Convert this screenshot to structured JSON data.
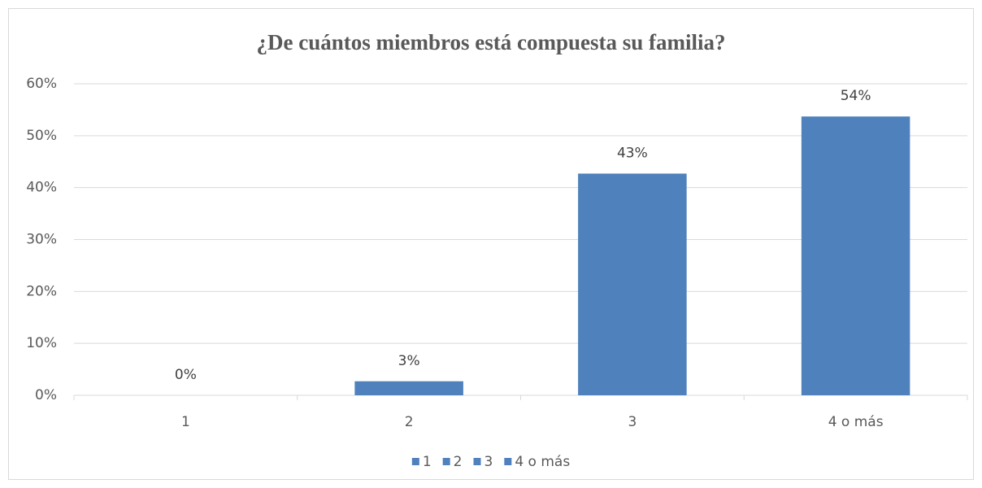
{
  "chart_data": {
    "type": "bar",
    "title": "¿De cuántos miembros está compuesta su familia?",
    "categories": [
      "1",
      "2",
      "3",
      "4 o más"
    ],
    "values": [
      0,
      2.7,
      42.7,
      53.7
    ],
    "value_labels": [
      "0%",
      "3%",
      "43%",
      "54%"
    ],
    "color": "#4f81bd",
    "ylim": [
      0,
      60
    ],
    "yticks": [
      {
        "value": 0,
        "label": "0%"
      },
      {
        "value": 10,
        "label": "10%"
      },
      {
        "value": 20,
        "label": "20%"
      },
      {
        "value": 30,
        "label": "30%"
      },
      {
        "value": 40,
        "label": "40%"
      },
      {
        "value": 50,
        "label": "50%"
      },
      {
        "value": 60,
        "label": "60%"
      }
    ],
    "grid": true,
    "legend": "bottom"
  }
}
